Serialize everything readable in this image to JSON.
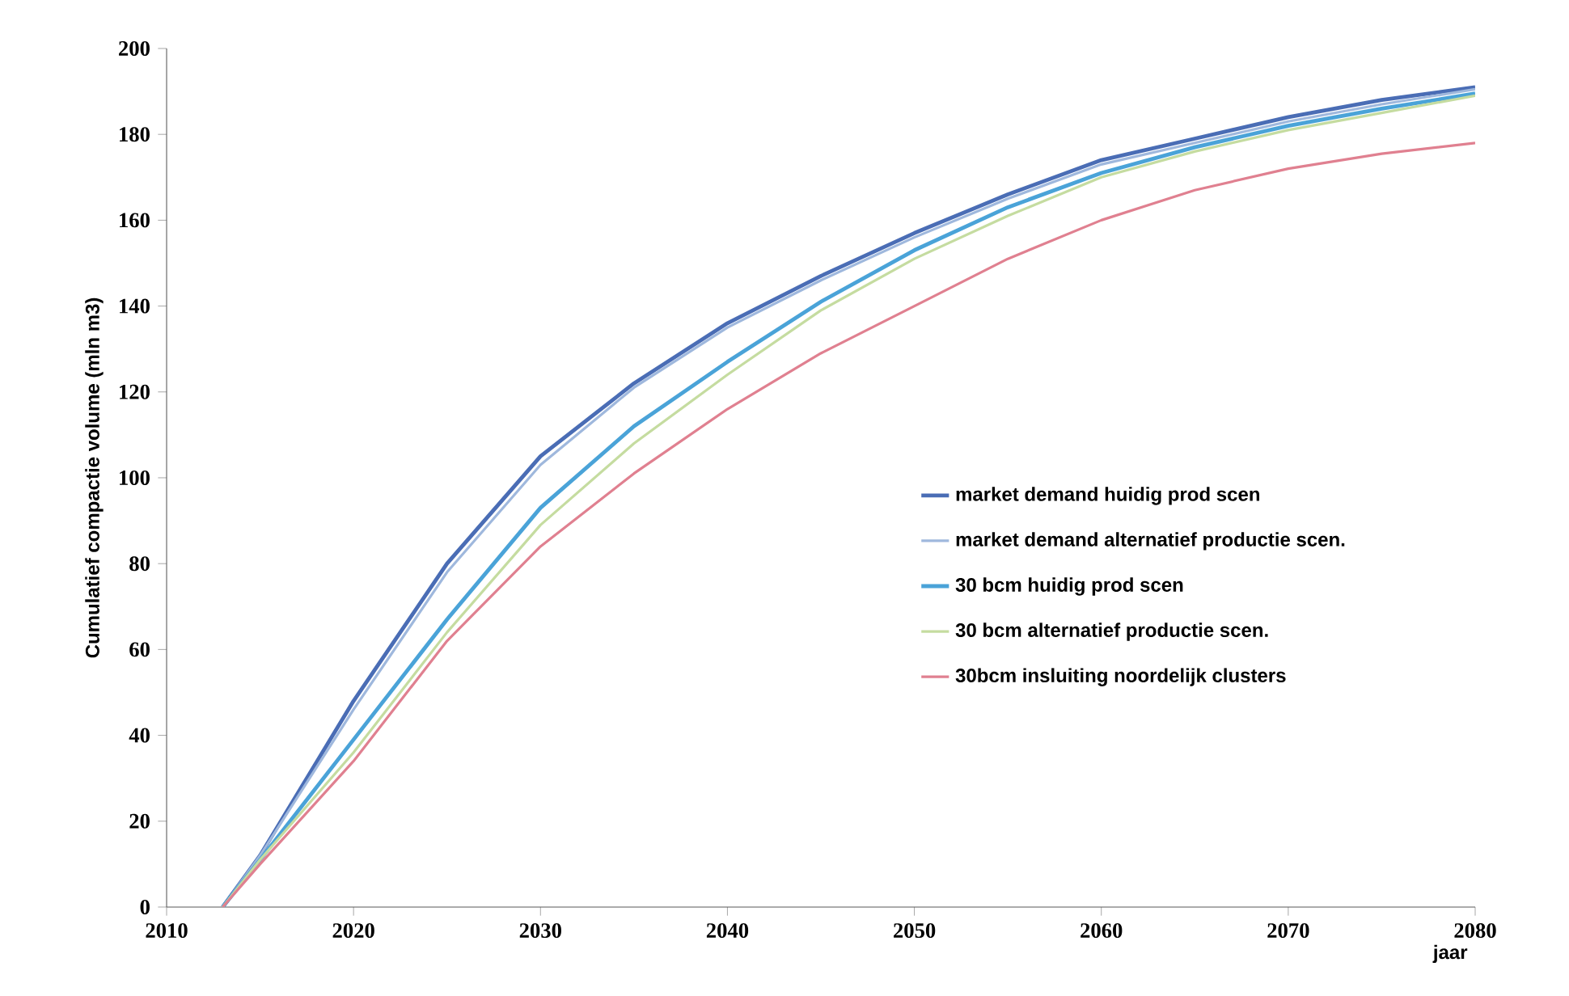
{
  "chart_data": {
    "type": "line",
    "xlabel": "jaar",
    "ylabel": "Cumulatief compactie volume (mln m3)",
    "x": [
      2013,
      2015,
      2020,
      2025,
      2030,
      2035,
      2040,
      2045,
      2050,
      2055,
      2060,
      2065,
      2070,
      2075,
      2080
    ],
    "series": [
      {
        "name": "market demand  huidig prod scen",
        "color": "#4a6db5",
        "values": [
          0,
          12,
          48,
          80,
          105,
          122,
          136,
          147,
          157,
          166,
          174,
          179,
          184,
          188,
          191
        ]
      },
      {
        "name": "market demand alternatief productie scen.",
        "color": "#9fb8dd",
        "values": [
          0,
          12,
          46,
          78,
          103,
          121,
          135,
          146,
          156,
          165,
          173,
          178,
          183,
          187,
          190.5
        ]
      },
      {
        "name": "30 bcm  huidig prod scen",
        "color": "#4aa3d8",
        "values": [
          0,
          11,
          39,
          67,
          93,
          112,
          127,
          141,
          153,
          163,
          171,
          177,
          182,
          186,
          189.5
        ]
      },
      {
        "name": "30 bcm alternatief productie scen.",
        "color": "#c5dca0",
        "values": [
          0,
          11,
          36,
          64,
          89,
          108,
          124,
          139,
          151,
          161,
          170,
          176,
          181,
          185,
          189
        ]
      },
      {
        "name": "30bcm insluiting noordelijk clusters",
        "color": "#e08090",
        "values": [
          0,
          10,
          34,
          62,
          84,
          101,
          116,
          129,
          140,
          151,
          160,
          167,
          172,
          175.5,
          178
        ]
      }
    ],
    "xlim": [
      2010,
      2080
    ],
    "ylim": [
      0,
      200
    ],
    "xticks": [
      2010,
      2020,
      2030,
      2040,
      2050,
      2060,
      2070,
      2080
    ],
    "yticks": [
      0,
      20,
      40,
      60,
      80,
      100,
      120,
      140,
      160,
      180,
      200
    ],
    "grid": false,
    "legend": "right",
    "marker": "none",
    "line_style": "solid"
  }
}
